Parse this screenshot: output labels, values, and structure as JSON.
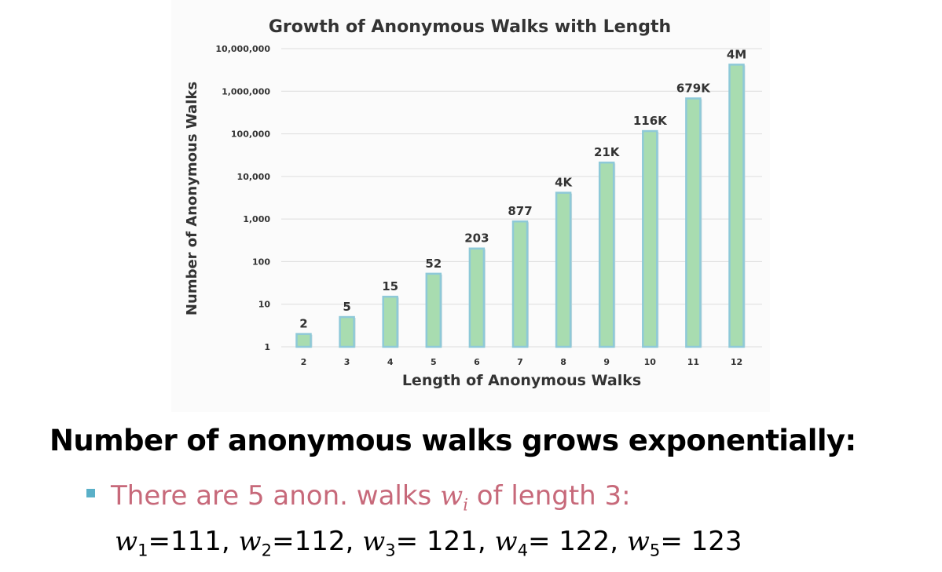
{
  "chart_data": {
    "type": "bar",
    "title": "Growth of Anonymous Walks with Length",
    "xlabel": "Length of Anonymous Walks",
    "ylabel": "Number of Anonymous Walks",
    "yscale": "log",
    "ylim": [
      1,
      10000000
    ],
    "yticks": [
      1,
      10,
      100,
      1000,
      10000,
      100000,
      1000000,
      10000000
    ],
    "ytick_labels": [
      "1",
      "10",
      "100",
      "1,000",
      "10,000",
      "100,000",
      "1,000,000",
      "10,000,000"
    ],
    "categories": [
      "2",
      "3",
      "4",
      "5",
      "6",
      "7",
      "8",
      "9",
      "10",
      "11",
      "12"
    ],
    "values": [
      2,
      5,
      15,
      52,
      203,
      877,
      4140,
      21147,
      115975,
      678570,
      4213597
    ],
    "data_labels": [
      "2",
      "5",
      "15",
      "52",
      "203",
      "877",
      "4K",
      "21K",
      "116K",
      "679K",
      "4M"
    ],
    "grid": true,
    "colors": {
      "bar_fill": "#a8dcb0",
      "bar_edge": "#8ec9d8",
      "gridline": "#dddddd",
      "text": "#333333"
    }
  },
  "heading": "Number of anonymous walks grows exponentially:",
  "bullet": {
    "prefix": "There are 5 anon. walks ",
    "var": "w",
    "sub": "i",
    "suffix": " of length 3:",
    "color": "#c7697a",
    "marker_color": "#5ab0c8"
  },
  "walks": [
    {
      "var": "w",
      "sub": "1",
      "eq": "=111",
      "sep": ", "
    },
    {
      "var": "w",
      "sub": "2",
      "eq": "=112",
      "sep": ", "
    },
    {
      "var": "w",
      "sub": "3",
      "eq": "= 121",
      "sep": ", "
    },
    {
      "var": "w",
      "sub": "4",
      "eq": "= 122",
      "sep": ", "
    },
    {
      "var": "w",
      "sub": "5",
      "eq": "= 123",
      "sep": ""
    }
  ]
}
